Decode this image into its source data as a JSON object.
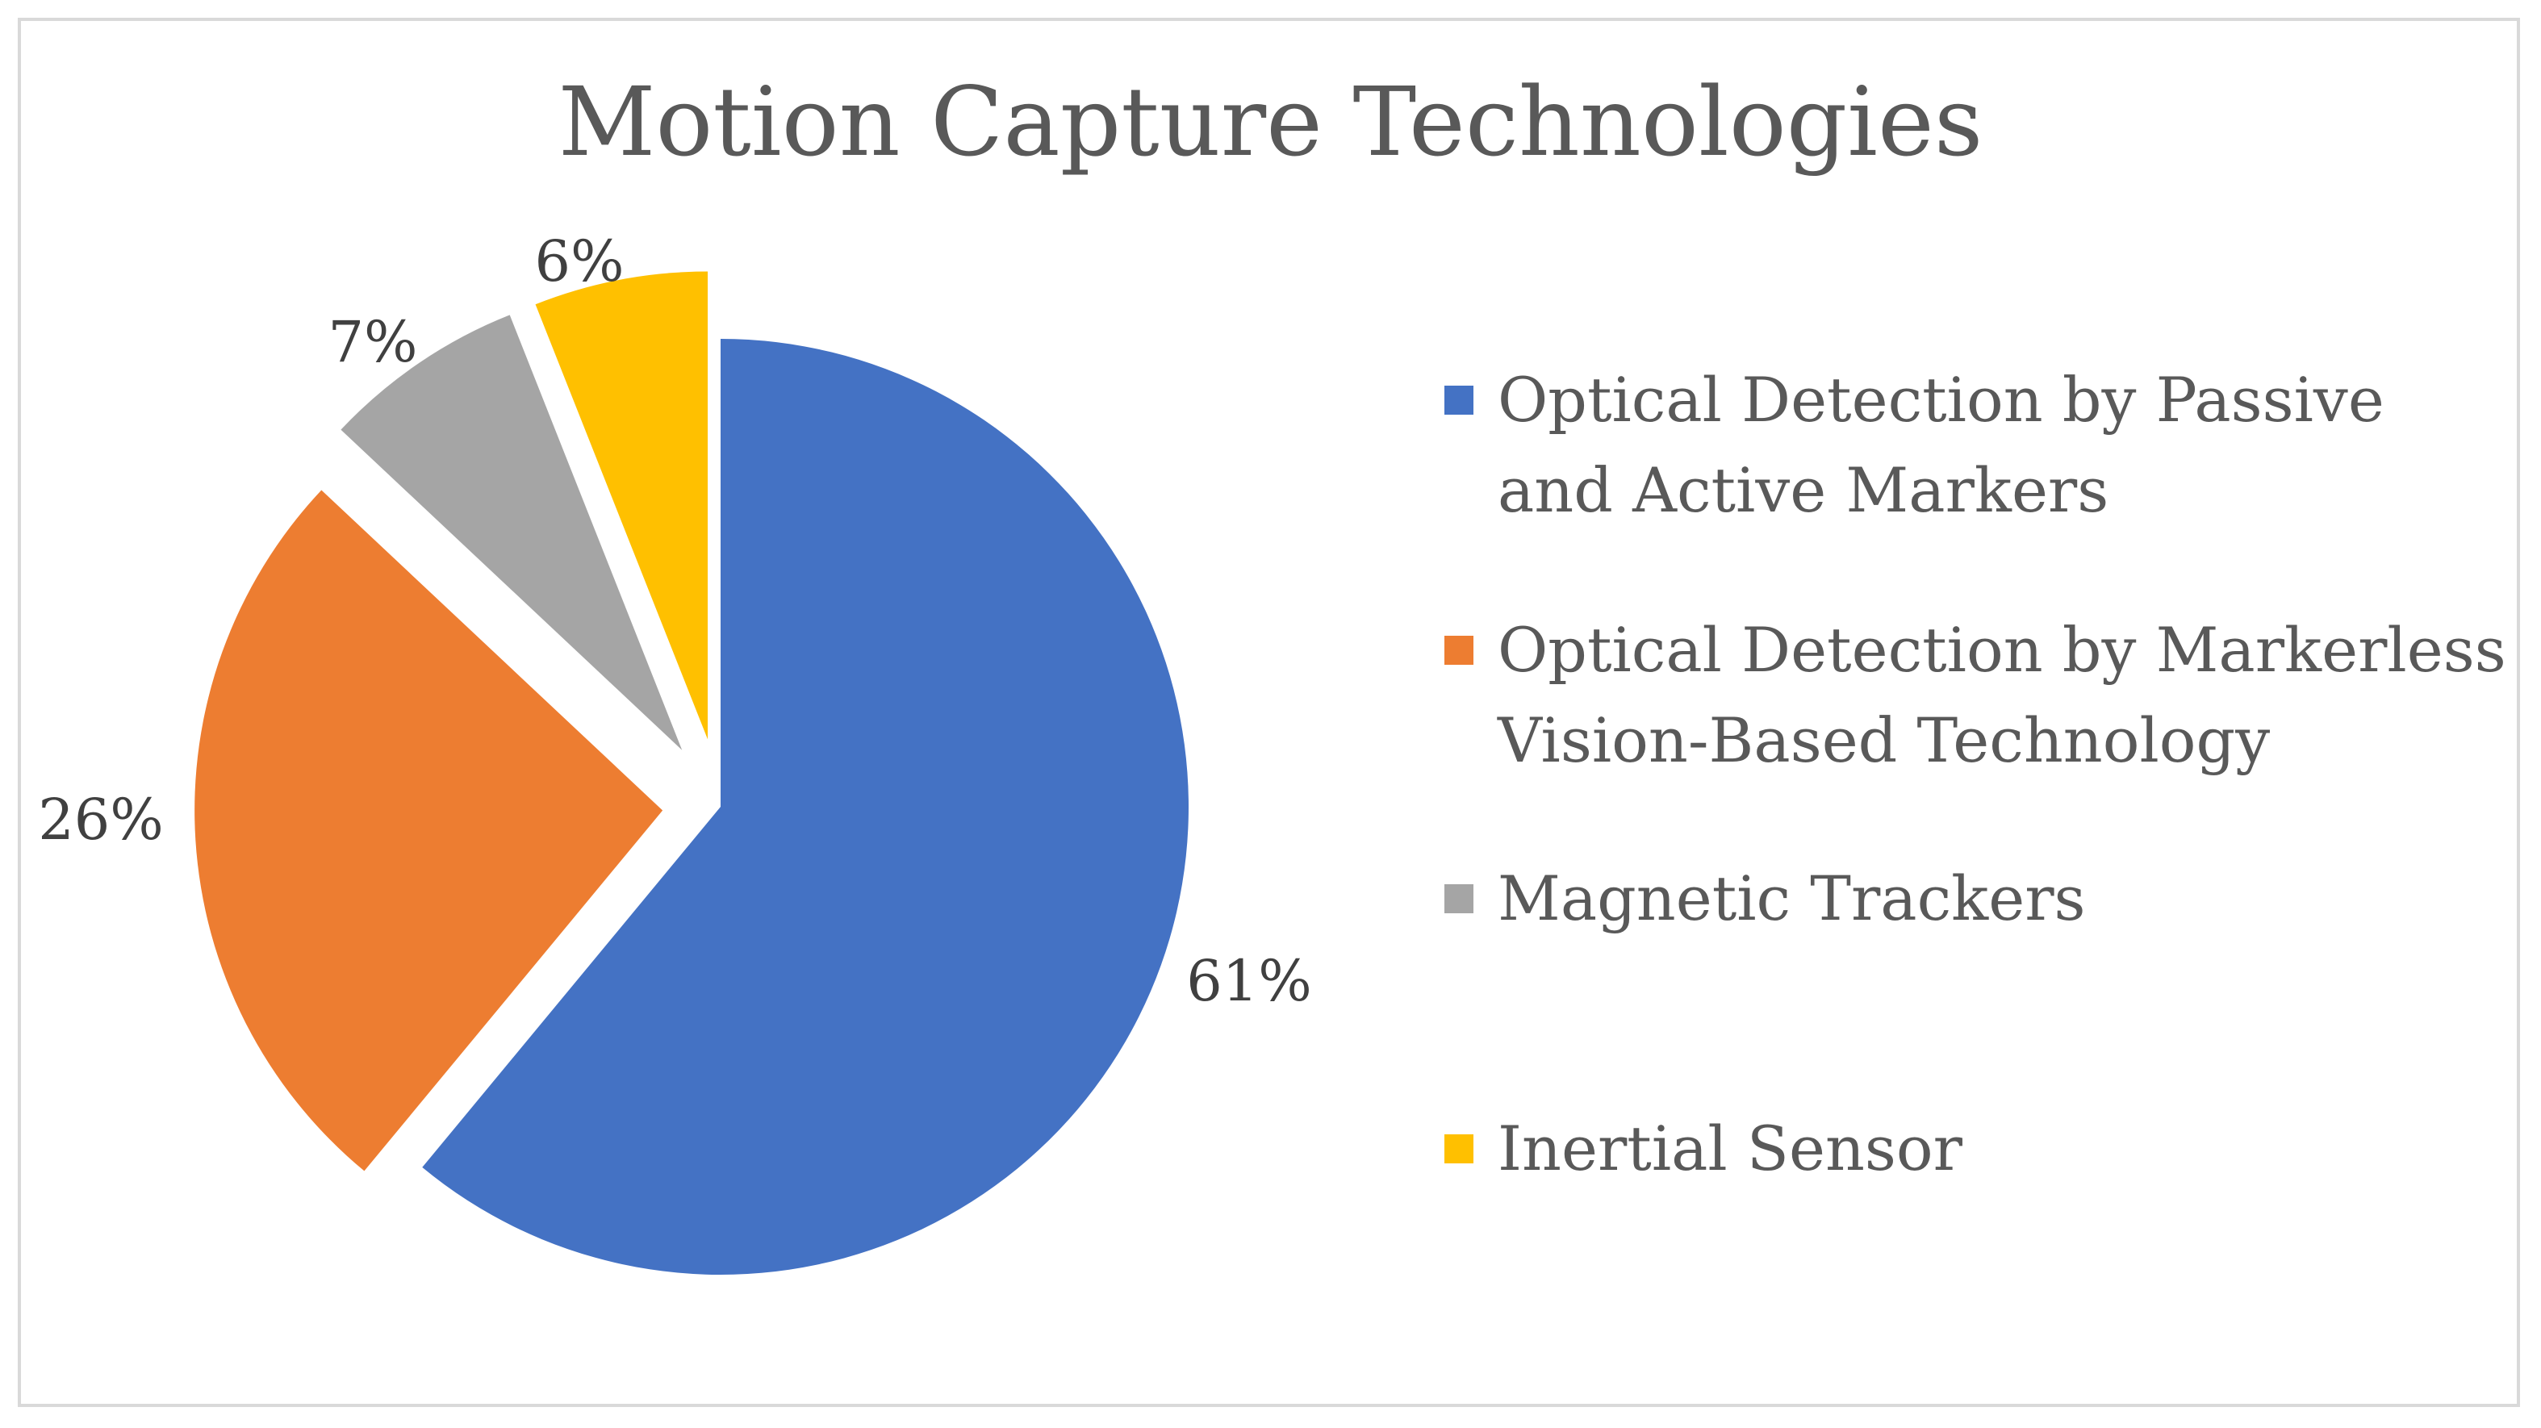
{
  "chart_data": {
    "type": "pie",
    "title": "Motion Capture Technologies",
    "categories": [
      "Optical Detection by Passive and Active Markers",
      "Optical Detection by Markerless Vision-Based Technology",
      "Magnetic Trackers",
      "Inertial Sensor"
    ],
    "values": [
      61,
      26,
      7,
      6
    ],
    "data_labels": [
      "61%",
      "26%",
      "7%",
      "6%"
    ],
    "colors": [
      "#4472c4",
      "#ed7d31",
      "#a5a5a5",
      "#ffc000"
    ],
    "exploded": true,
    "legend_position": "right"
  }
}
